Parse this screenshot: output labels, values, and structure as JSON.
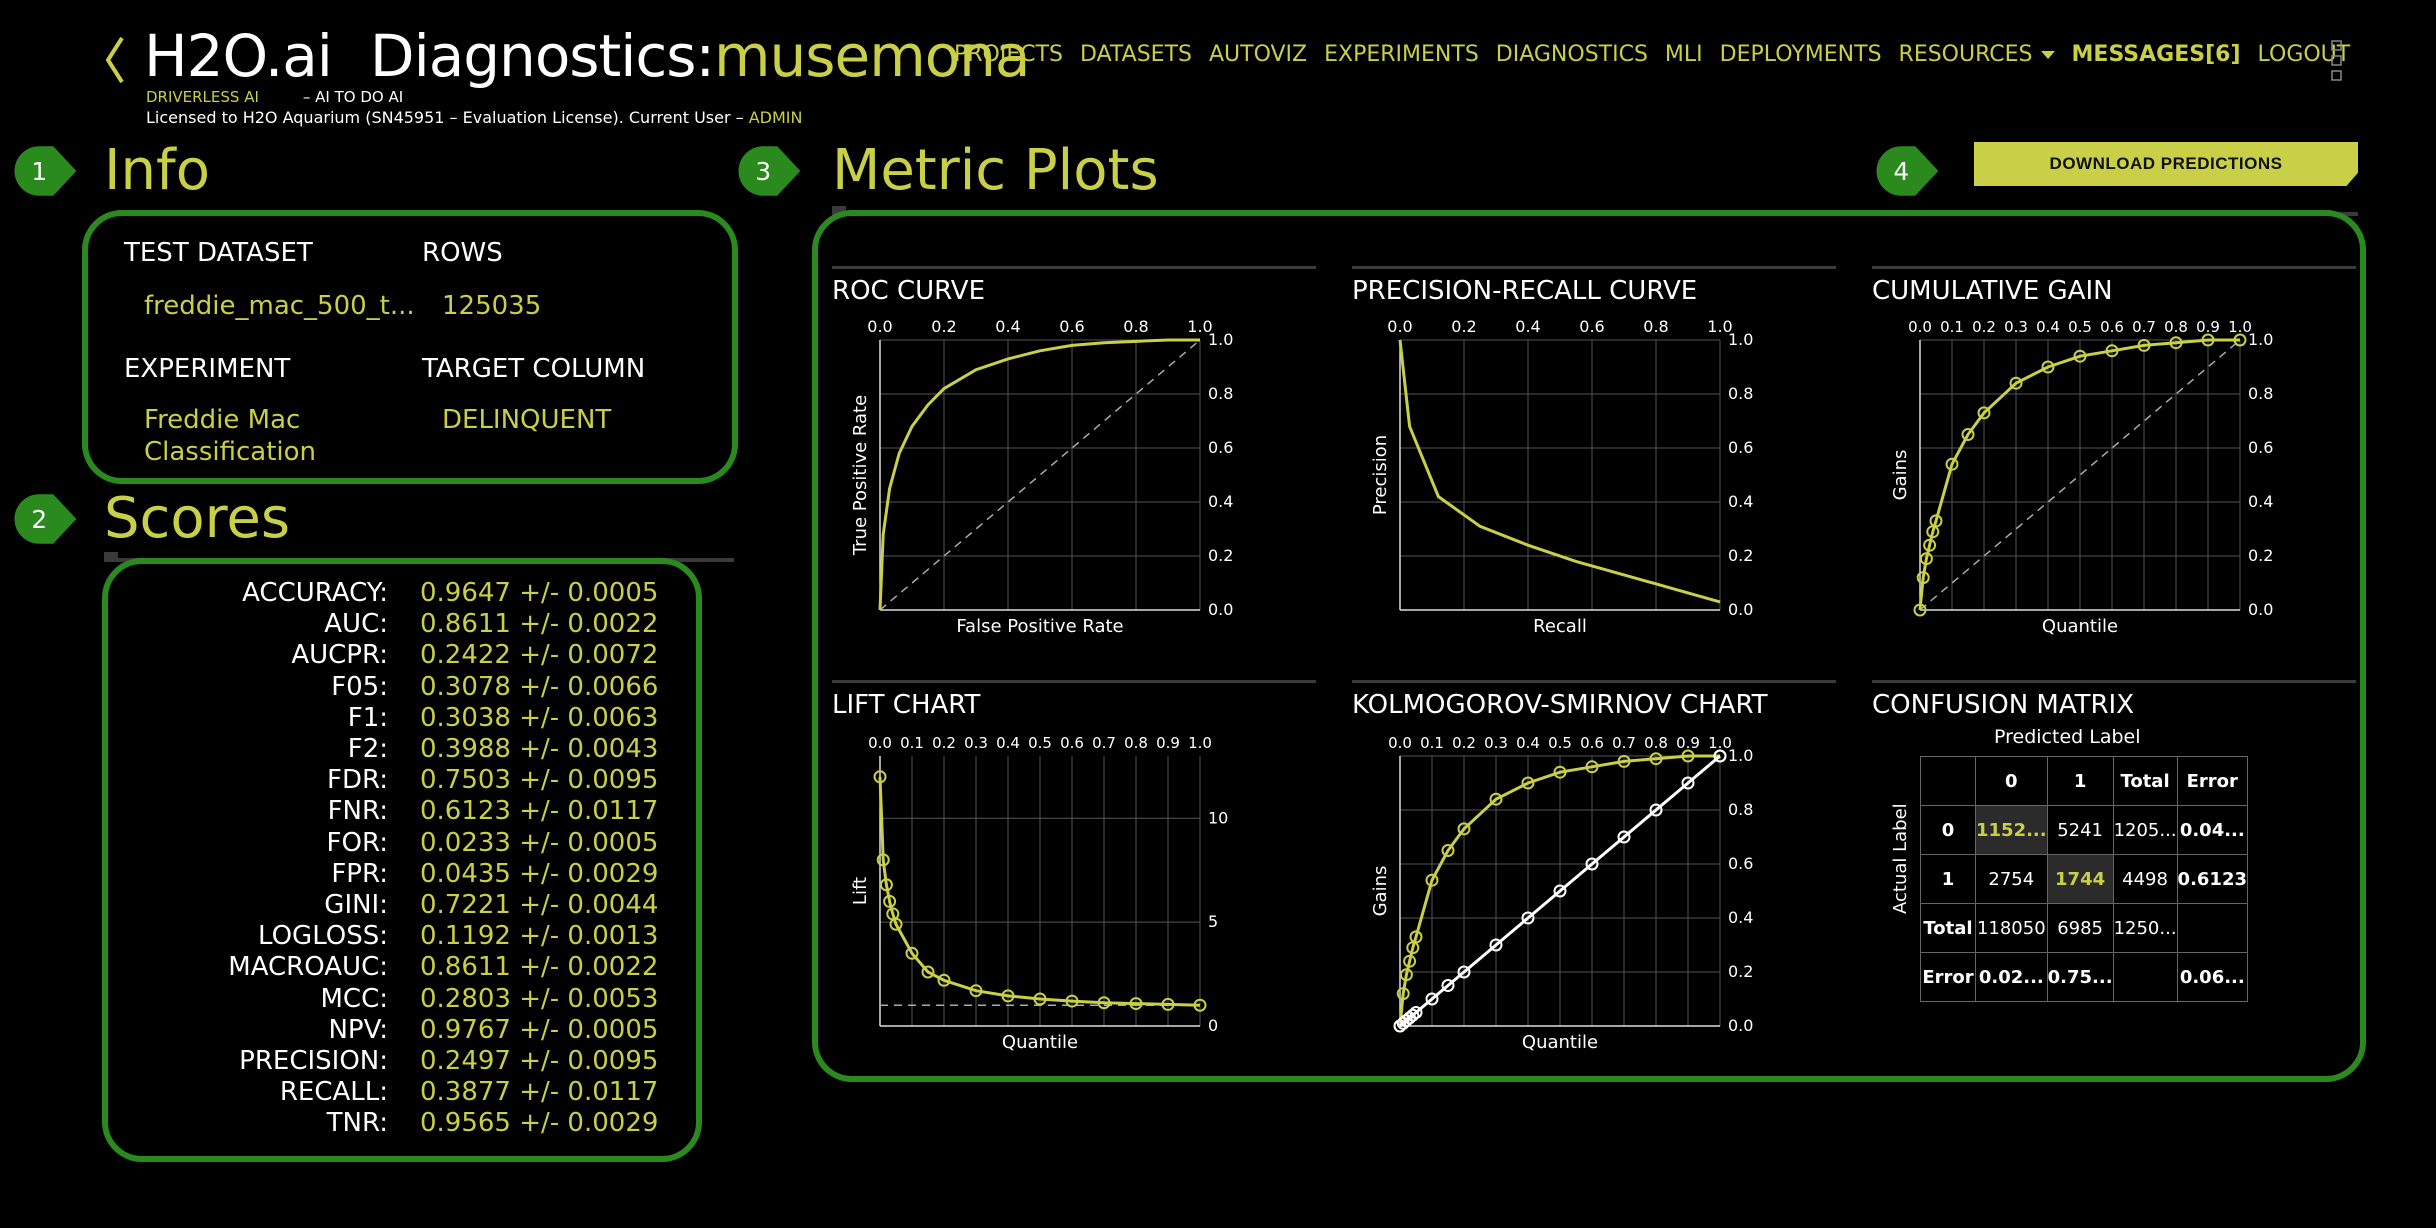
{
  "header": {
    "logo_brand": "H2O.ai",
    "logo_page": "Diagnostics:",
    "logo_project": "musemona",
    "sub_product": "DRIVERLESS AI",
    "sub_motto": "– AI TO DO AI",
    "license_prefix": "Licensed to H2O Aquarium (SN45951 – Evaluation License). Current User –",
    "license_user": "ADMIN",
    "accent_color": "#c9cf46"
  },
  "nav": {
    "items": [
      "PROJECTS",
      "DATASETS",
      "AUTOVIZ",
      "EXPERIMENTS",
      "DIAGNOSTICS",
      "MLI",
      "DEPLOYMENTS"
    ],
    "resources": "RESOURCES",
    "messages": "MESSAGES[6]",
    "logout": "LOGOUT"
  },
  "badges": [
    "1",
    "2",
    "3",
    "4"
  ],
  "info": {
    "title": "Info",
    "test_dataset_label": "TEST DATASET",
    "test_dataset_value": "freddie_mac_500_t...",
    "rows_label": "ROWS",
    "rows_value": "125035",
    "experiment_label": "EXPERIMENT",
    "experiment_value_1": "Freddie Mac",
    "experiment_value_2": "Classification",
    "target_label": "TARGET COLUMN",
    "target_value": "DELINQUENT"
  },
  "scores": {
    "title": "Scores",
    "rows": [
      {
        "k": "ACCURACY:",
        "v": "0.9647 +/- 0.0005"
      },
      {
        "k": "AUC:",
        "v": "0.8611 +/- 0.0022"
      },
      {
        "k": "AUCPR:",
        "v": "0.2422 +/- 0.0072"
      },
      {
        "k": "F05:",
        "v": "0.3078 +/- 0.0066"
      },
      {
        "k": "F1:",
        "v": "0.3038 +/- 0.0063"
      },
      {
        "k": "F2:",
        "v": "0.3988 +/- 0.0043"
      },
      {
        "k": "FDR:",
        "v": "0.7503 +/- 0.0095"
      },
      {
        "k": "FNR:",
        "v": "0.6123 +/- 0.0117"
      },
      {
        "k": "FOR:",
        "v": "0.0233 +/- 0.0005"
      },
      {
        "k": "FPR:",
        "v": "0.0435 +/- 0.0029"
      },
      {
        "k": "GINI:",
        "v": "0.7221 +/- 0.0044"
      },
      {
        "k": "LOGLOSS:",
        "v": "0.1192 +/- 0.0013"
      },
      {
        "k": "MACROAUC:",
        "v": "0.8611 +/- 0.0022"
      },
      {
        "k": "MCC:",
        "v": "0.2803 +/- 0.0053"
      },
      {
        "k": "NPV:",
        "v": "0.9767 +/- 0.0005"
      },
      {
        "k": "PRECISION:",
        "v": "0.2497 +/- 0.0095"
      },
      {
        "k": "RECALL:",
        "v": "0.3877 +/- 0.0117"
      },
      {
        "k": "TNR:",
        "v": "0.9565 +/- 0.0029"
      }
    ]
  },
  "metric_plots": {
    "title": "Metric Plots",
    "download_label": "DOWNLOAD PREDICTIONS"
  },
  "chart_data": [
    {
      "type": "line",
      "title": "ROC CURVE",
      "xlabel": "False Positive Rate",
      "ylabel": "True Positive Rate",
      "xlim": [
        0,
        1
      ],
      "ylim": [
        0,
        1
      ],
      "xticks": [
        "0.0",
        "0.2",
        "0.4",
        "0.6",
        "0.8",
        "1.0"
      ],
      "yticks": [
        "0.0",
        "0.2",
        "0.4",
        "0.6",
        "0.8",
        "1.0"
      ],
      "grid": true,
      "series": [
        {
          "x": [
            0,
            0.01,
            0.03,
            0.06,
            0.1,
            0.15,
            0.2,
            0.3,
            0.4,
            0.5,
            0.6,
            0.7,
            0.8,
            0.9,
            1.0
          ],
          "y": [
            0,
            0.28,
            0.45,
            0.58,
            0.68,
            0.76,
            0.82,
            0.89,
            0.93,
            0.96,
            0.98,
            0.99,
            0.995,
            1.0,
            1.0
          ]
        }
      ],
      "reference_line": "diagonal"
    },
    {
      "type": "line",
      "title": "PRECISION-RECALL CURVE",
      "xlabel": "Recall",
      "ylabel": "Precision",
      "xlim": [
        0,
        1
      ],
      "ylim": [
        0,
        1
      ],
      "xticks": [
        "0.0",
        "0.2",
        "0.4",
        "0.6",
        "0.8",
        "1.0"
      ],
      "yticks": [
        "0.0",
        "0.2",
        "0.4",
        "0.6",
        "0.8",
        "1.0"
      ],
      "grid": true,
      "series": [
        {
          "x": [
            0,
            0.03,
            0.12,
            0.25,
            0.4,
            0.55,
            0.7,
            0.85,
            1.0
          ],
          "y": [
            1.0,
            0.68,
            0.42,
            0.31,
            0.24,
            0.18,
            0.13,
            0.08,
            0.03
          ]
        }
      ]
    },
    {
      "type": "line",
      "title": "CUMULATIVE GAIN",
      "xlabel": "Quantile",
      "ylabel": "Gains",
      "xlim": [
        0,
        1
      ],
      "ylim": [
        0,
        1
      ],
      "xticks": [
        "0.0",
        "0.1",
        "0.2",
        "0.3",
        "0.4",
        "0.5",
        "0.6",
        "0.7",
        "0.8",
        "0.9",
        "1.0"
      ],
      "yticks": [
        "0.0",
        "0.2",
        "0.4",
        "0.6",
        "0.8",
        "1.0"
      ],
      "grid": true,
      "series": [
        {
          "x": [
            0,
            0.01,
            0.02,
            0.03,
            0.04,
            0.05,
            0.1,
            0.15,
            0.2,
            0.3,
            0.4,
            0.5,
            0.6,
            0.7,
            0.8,
            0.9,
            1.0
          ],
          "y": [
            0,
            0.12,
            0.19,
            0.24,
            0.29,
            0.33,
            0.54,
            0.65,
            0.73,
            0.84,
            0.9,
            0.94,
            0.96,
            0.98,
            0.99,
            1.0,
            1.0
          ]
        }
      ],
      "reference_line": "diagonal"
    },
    {
      "type": "line",
      "title": "LIFT CHART",
      "xlabel": "Quantile",
      "ylabel": "Lift",
      "xlim": [
        0,
        1
      ],
      "ylim": [
        0,
        13
      ],
      "xticks": [
        "0.0",
        "0.1",
        "0.2",
        "0.3",
        "0.4",
        "0.5",
        "0.6",
        "0.7",
        "0.8",
        "0.9",
        "1.0"
      ],
      "yticks": [
        "0",
        "5",
        "10"
      ],
      "grid": true,
      "series": [
        {
          "x": [
            0,
            0.01,
            0.02,
            0.03,
            0.04,
            0.05,
            0.1,
            0.15,
            0.2,
            0.3,
            0.4,
            0.5,
            0.6,
            0.7,
            0.8,
            0.9,
            1.0
          ],
          "y": [
            12,
            8.0,
            6.8,
            6.0,
            5.4,
            4.9,
            3.5,
            2.6,
            2.2,
            1.7,
            1.45,
            1.3,
            1.2,
            1.12,
            1.08,
            1.04,
            1.0
          ]
        }
      ],
      "reference_value": 1.0
    },
    {
      "type": "line",
      "title": "KOLMOGOROV-SMIRNOV CHART",
      "xlabel": "Quantile",
      "ylabel": "Gains",
      "xlim": [
        0,
        1
      ],
      "ylim": [
        0,
        1
      ],
      "xticks": [
        "0.0",
        "0.1",
        "0.2",
        "0.3",
        "0.4",
        "0.5",
        "0.6",
        "0.7",
        "0.8",
        "0.9",
        "1.0"
      ],
      "yticks": [
        "0.0",
        "0.2",
        "0.4",
        "0.6",
        "0.8",
        "1.0"
      ],
      "grid": true,
      "series": [
        {
          "x": [
            0,
            0.01,
            0.02,
            0.03,
            0.04,
            0.05,
            0.1,
            0.15,
            0.2,
            0.3,
            0.4,
            0.5,
            0.6,
            0.7,
            0.8,
            0.9,
            1.0
          ],
          "y": [
            0,
            0.12,
            0.19,
            0.24,
            0.29,
            0.33,
            0.54,
            0.65,
            0.73,
            0.84,
            0.9,
            0.94,
            0.96,
            0.98,
            0.99,
            1.0,
            1.0
          ]
        },
        {
          "x": [
            0,
            0.01,
            0.02,
            0.03,
            0.04,
            0.05,
            0.1,
            0.15,
            0.2,
            0.3,
            0.4,
            0.5,
            0.6,
            0.7,
            0.8,
            0.9,
            1.0
          ],
          "y": [
            0,
            0.01,
            0.02,
            0.03,
            0.04,
            0.05,
            0.1,
            0.15,
            0.2,
            0.3,
            0.4,
            0.5,
            0.6,
            0.7,
            0.8,
            0.9,
            1.0
          ]
        }
      ]
    },
    {
      "type": "table",
      "title": "CONFUSION MATRIX",
      "col_axis_label": "Predicted Label",
      "row_axis_label": "Actual Label",
      "headers": [
        "",
        "0",
        "1",
        "Total",
        "Error"
      ],
      "rows": [
        [
          "0",
          "1152...",
          "5241",
          "1205...",
          "0.04..."
        ],
        [
          "1",
          "2754",
          "1744",
          "4498",
          "0.6123"
        ],
        [
          "Total",
          "118050",
          "6985",
          "1250...",
          ""
        ],
        [
          "Error",
          "0.02...",
          "0.75...",
          "",
          "0.06..."
        ]
      ]
    }
  ]
}
